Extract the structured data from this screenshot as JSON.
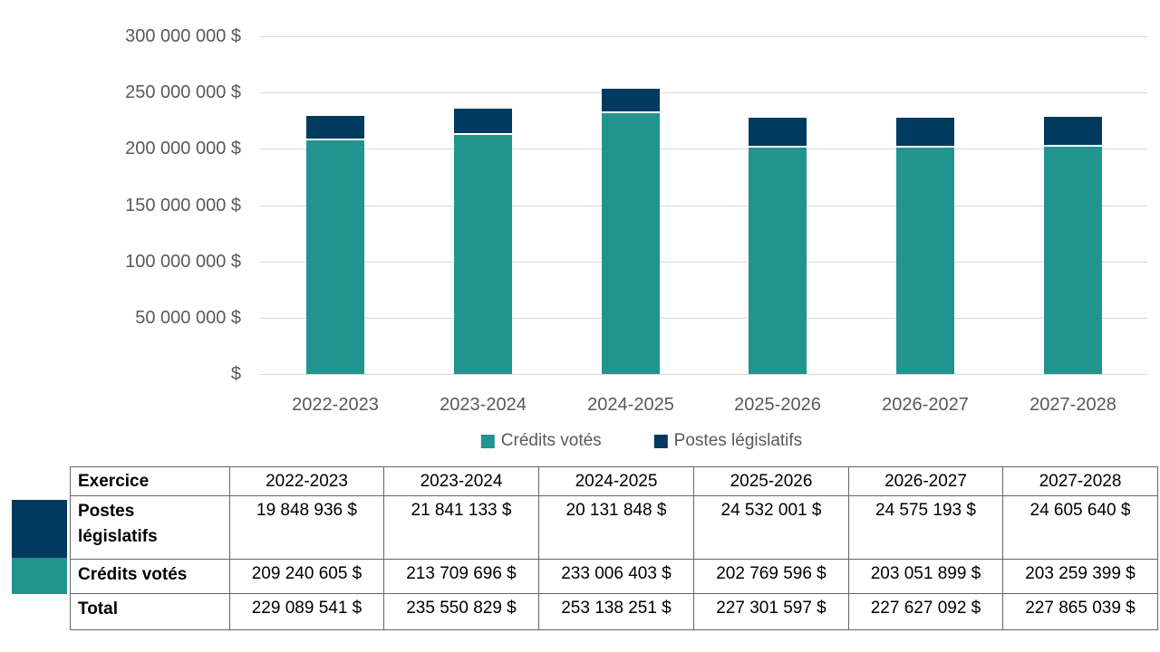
{
  "chart_data": {
    "type": "bar",
    "stacked": true,
    "title": "",
    "xlabel": "",
    "ylabel": "",
    "categories": [
      "2022-2023",
      "2023-2024",
      "2024-2025",
      "2025-2026",
      "2026-2027",
      "2027-2028"
    ],
    "series": [
      {
        "name": "Crédits votés",
        "color": "#219490",
        "values": [
          209240605,
          213709696,
          233006403,
          202769596,
          203051899,
          203259399
        ]
      },
      {
        "name": "Postes législatifs",
        "color": "#003A5E",
        "values": [
          19848936,
          21841133,
          20131848,
          24532001,
          24575193,
          24605640
        ]
      }
    ],
    "ylim": [
      0,
      300000000
    ],
    "ytick_step": 50000000,
    "ytick_labels": [
      "$",
      "50 000 000 $",
      "100 000 000 $",
      "150 000 000 $",
      "200 000 000 $",
      "250 000 000 $",
      "300 000 000 $"
    ],
    "grid": true,
    "gridline_color": "#d9d9d9",
    "axis_text_color": "#595959",
    "legend_position": "bottom",
    "legend": [
      "Crédits votés",
      "Postes législatifs"
    ]
  },
  "table": {
    "header": [
      "Exercice",
      "2022-2023",
      "2023-2024",
      "2024-2025",
      "2025-2026",
      "2026-2027",
      "2027-2028"
    ],
    "rows": [
      {
        "label": "Postes législatifs",
        "swatch": "#003A5E",
        "values": [
          "19 848 936 $",
          "21 841 133 $",
          "20 131 848 $",
          "24 532 001 $",
          "24 575 193 $",
          "24 605 640 $"
        ]
      },
      {
        "label": "Crédits votés",
        "swatch": "#219490",
        "values": [
          "209 240 605 $",
          "213 709 696 $",
          "233 006 403 $",
          "202 769 596 $",
          "203 051 899 $",
          "203 259 399 $"
        ]
      },
      {
        "label": "Total",
        "swatch": null,
        "values": [
          "229 089 541 $",
          "235 550 829 $",
          "253 138 251 $",
          "227 301 597 $",
          "227 627 092 $",
          "227 865 039 $"
        ]
      }
    ]
  },
  "colors": {
    "credits_votes": "#219490",
    "postes_legislatifs": "#003A5E",
    "axis_text": "#595959",
    "gridline": "#d9d9d9",
    "table_border": "#666666",
    "background": "#ffffff"
  }
}
